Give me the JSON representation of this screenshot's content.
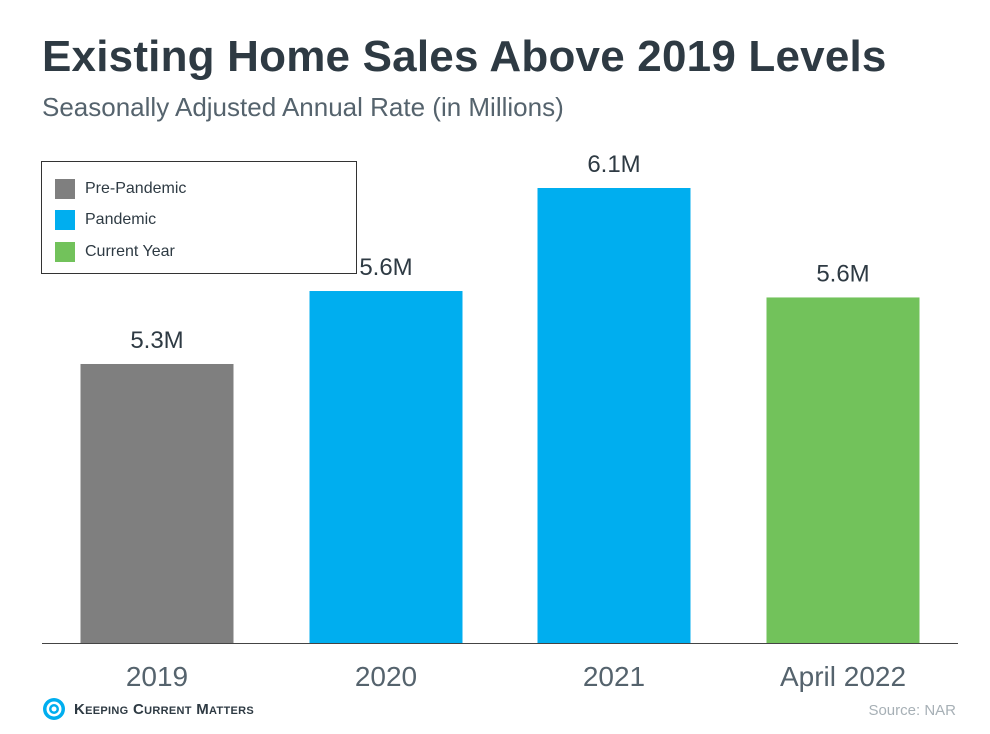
{
  "header": {
    "title": "Existing Home Sales Above 2019 Levels",
    "subtitle": "Seasonally Adjusted Annual Rate (in Millions)"
  },
  "legend": {
    "items": [
      {
        "label": "Pre-Pandemic",
        "color": "#7f7f7f"
      },
      {
        "label": "Pandemic",
        "color": "#00aeef"
      },
      {
        "label": "Current Year",
        "color": "#72c25b"
      }
    ]
  },
  "chart_data": {
    "type": "bar",
    "title": "Existing Home Sales Above 2019 Levels",
    "subtitle": "Seasonally Adjusted Annual Rate (in Millions)",
    "xlabel": "",
    "ylabel": "",
    "categories": [
      "2019",
      "2020",
      "2021",
      "April 2022"
    ],
    "values": [
      5.3,
      5.64,
      6.12,
      5.61
    ],
    "data_labels": [
      "5.3M",
      "5.6M",
      "6.1M",
      "5.6M"
    ],
    "groups": [
      "Pre-Pandemic",
      "Pandemic",
      "Pandemic",
      "Current Year"
    ],
    "colors": [
      "#7f7f7f",
      "#00aeef",
      "#00aeef",
      "#72c25b"
    ],
    "ylim": [
      4.0,
      6.2
    ],
    "grid": false,
    "legend_position": "top-left"
  },
  "footer": {
    "brand": "Keeping Current Matters",
    "source": "Source: NAR"
  }
}
